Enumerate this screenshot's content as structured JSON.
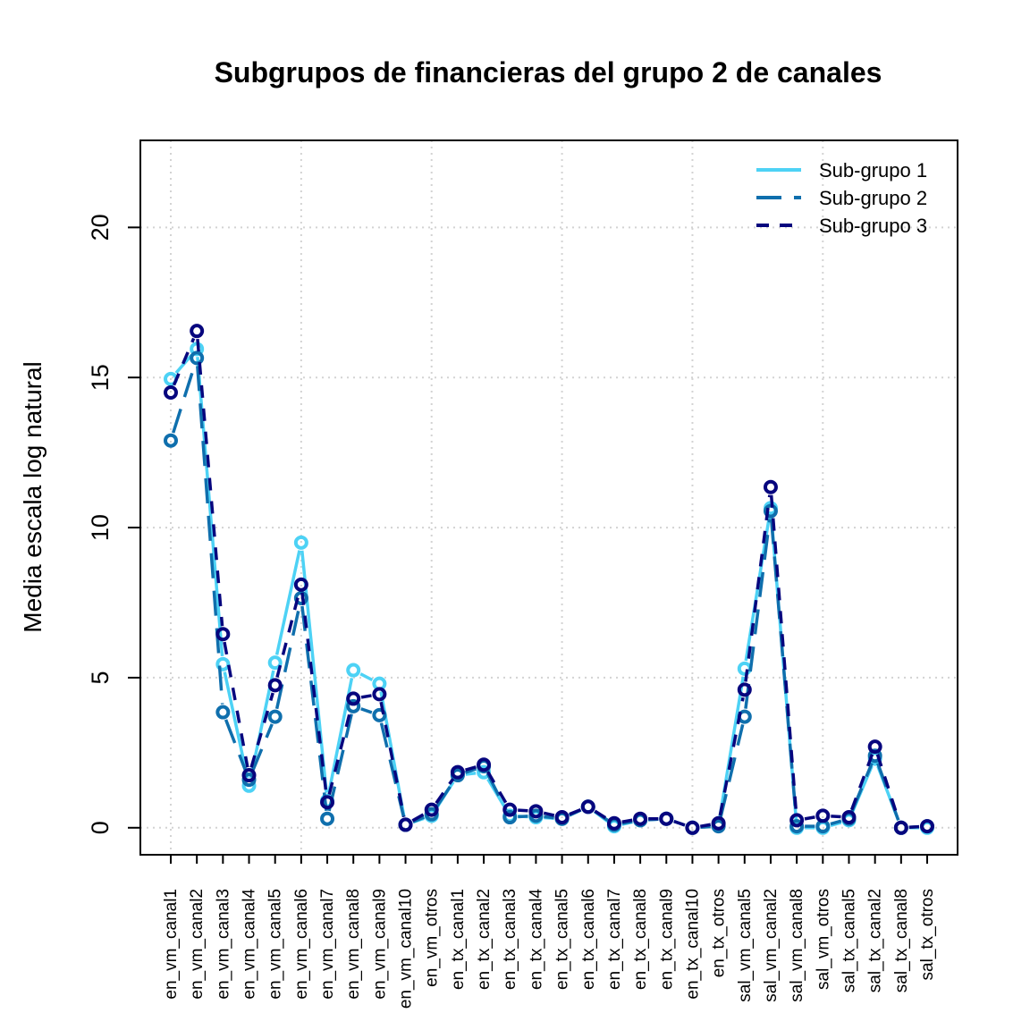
{
  "chart_data": {
    "type": "line",
    "title": "Subgrupos de financieras del grupo 2 de canales",
    "xlabel": "",
    "ylabel": "Media escala log natural",
    "ylim": [
      -0.9,
      22.9
    ],
    "yticks": [
      0,
      5,
      10,
      15,
      20
    ],
    "grid": true,
    "legend_position": "top-right",
    "categories": [
      "en_vm_canal1",
      "en_vm_canal2",
      "en_vm_canal3",
      "en_vm_canal4",
      "en_vm_canal5",
      "en_vm_canal6",
      "en_vm_canal7",
      "en_vm_canal8",
      "en_vm_canal9",
      "en_vm_canal10",
      "en_vm_otros",
      "en_tx_canal1",
      "en_tx_canal2",
      "en_tx_canal3",
      "en_tx_canal4",
      "en_tx_canal5",
      "en_tx_canal6",
      "en_tx_canal7",
      "en_tx_canal8",
      "en_tx_canal9",
      "en_tx_canal10",
      "en_tx_otros",
      "sal_vm_canal5",
      "sal_vm_canal2",
      "sal_vm_canal8",
      "sal_vm_otros",
      "sal_tx_canal5",
      "sal_tx_canal2",
      "sal_tx_canal8",
      "sal_tx_otros"
    ],
    "series": [
      {
        "name": "Sub-grupo 1",
        "color": "#4DD2F5",
        "dash": "solid",
        "values": [
          14.95,
          15.95,
          5.45,
          1.4,
          5.5,
          9.5,
          0.9,
          5.25,
          4.8,
          0.1,
          0.4,
          1.75,
          1.85,
          0.4,
          0.35,
          0.3,
          0.7,
          0.05,
          0.25,
          0.3,
          0.0,
          0.1,
          5.3,
          10.65,
          0.0,
          0.0,
          0.25,
          2.3,
          0.0,
          0.0
        ]
      },
      {
        "name": "Sub-grupo 2",
        "color": "#0F6FAD",
        "dash": "long",
        "values": [
          12.9,
          15.65,
          3.85,
          1.6,
          3.7,
          7.65,
          0.3,
          4.05,
          3.75,
          0.1,
          0.45,
          1.75,
          2.05,
          0.35,
          0.4,
          0.3,
          0.7,
          0.1,
          0.25,
          0.3,
          0.0,
          0.05,
          3.7,
          10.55,
          0.05,
          0.05,
          0.3,
          2.4,
          0.0,
          0.05
        ]
      },
      {
        "name": "Sub-grupo 3",
        "color": "#07067E",
        "dash": "short",
        "values": [
          14.5,
          16.55,
          6.45,
          1.75,
          4.75,
          8.1,
          0.85,
          4.3,
          4.45,
          0.1,
          0.6,
          1.85,
          2.1,
          0.6,
          0.55,
          0.35,
          0.7,
          0.15,
          0.3,
          0.3,
          0.0,
          0.15,
          4.6,
          11.35,
          0.25,
          0.4,
          0.35,
          2.7,
          0.0,
          0.05
        ]
      }
    ]
  }
}
